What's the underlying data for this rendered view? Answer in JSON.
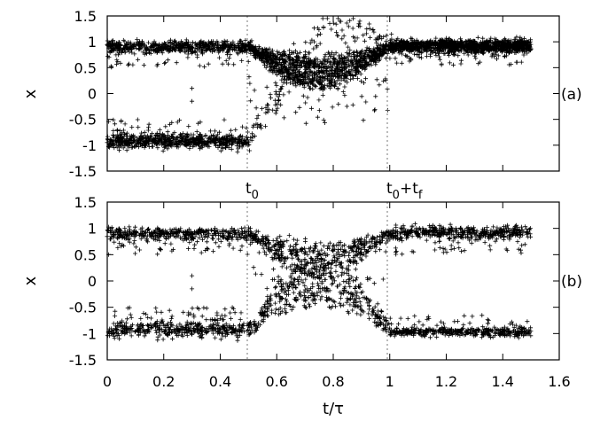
{
  "chart_data": [
    {
      "type": "scatter",
      "panel_label": "(a)",
      "ylabel": "x",
      "xlabel": "",
      "xlim": [
        0,
        1.6
      ],
      "ylim": [
        -1.5,
        1.5
      ],
      "yticks": [
        "1.5",
        "1",
        "0.5",
        "0",
        "-0.5",
        "-1",
        "-1.5"
      ],
      "xticks": [],
      "vertical_markers": [
        0.5,
        1.0
      ],
      "marker_labels": [
        {
          "x": 0.5,
          "base": "t",
          "sub": "0",
          "mid": "",
          "sub2": ""
        },
        {
          "x": 1.0,
          "base": "t",
          "sub": "0",
          "mid": "+t",
          "sub2": "f"
        }
      ],
      "series": [
        {
          "description_points": [
            {
              "t": 0.0,
              "upper_band": [
                0.8,
                1.0
              ],
              "lower_band": [
                -1.05,
                -0.75
              ]
            },
            {
              "t": 0.5,
              "upper_band": [
                0.8,
                1.0
              ],
              "lower_band": [
                -1.05,
                -0.75
              ]
            },
            {
              "t": 0.78,
              "merged_band": [
                -0.4,
                1.0
              ]
            },
            {
              "t": 1.0,
              "upper_band": [
                0.8,
                1.05
              ]
            },
            {
              "t": 1.5,
              "upper_band": [
                0.8,
                1.05
              ]
            }
          ],
          "marker": "+"
        }
      ]
    },
    {
      "type": "scatter",
      "panel_label": "(b)",
      "ylabel": "x",
      "xlabel": "t/τ",
      "xlim": [
        0,
        1.6
      ],
      "ylim": [
        -1.5,
        1.5
      ],
      "yticks": [
        "1.5",
        "1",
        "0.5",
        "0",
        "-0.5",
        "-1",
        "-1.5"
      ],
      "xticks": [
        "0",
        "0.2",
        "0.4",
        "0.6",
        "0.8",
        "1",
        "1.2",
        "1.4",
        "1.6"
      ],
      "vertical_markers": [
        0.5,
        1.0
      ],
      "series": [
        {
          "description_points": [
            {
              "t": 0.0,
              "upper_band": [
                0.8,
                1.05
              ],
              "lower_band": [
                -1.05,
                -0.75
              ]
            },
            {
              "t": 0.5,
              "upper_band": [
                0.8,
                1.05
              ],
              "lower_band": [
                -1.05,
                -0.75
              ]
            },
            {
              "t": 0.75,
              "merged_band": [
                -0.6,
                1.0
              ]
            },
            {
              "t": 1.0,
              "upper_band": [
                0.8,
                1.05
              ],
              "lower_band": [
                -1.05,
                -0.9
              ]
            },
            {
              "t": 1.5,
              "upper_band": [
                0.8,
                1.05
              ],
              "lower_band": [
                -1.05,
                -0.9
              ]
            }
          ],
          "marker": "+"
        }
      ]
    }
  ]
}
